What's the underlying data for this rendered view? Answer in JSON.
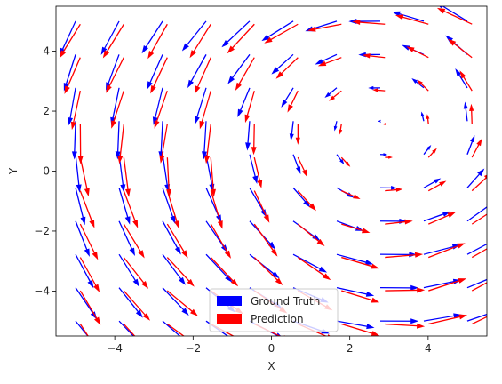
{
  "chart_data": {
    "type": "quiver",
    "title": "",
    "xlabel": "X",
    "ylabel": "Y",
    "xlim": [
      -5.5,
      5.5
    ],
    "ylim": [
      -5.5,
      5.5
    ],
    "xticks": [
      -4,
      -2,
      0,
      2,
      4
    ],
    "yticks": [
      -4,
      -2,
      0,
      2,
      4
    ],
    "xtick_labels": [
      "−4",
      "−2",
      "0",
      "2",
      "4"
    ],
    "ytick_labels": [
      "−4",
      "−2",
      "0",
      "2",
      "4"
    ],
    "grid": false,
    "legend": {
      "placement": "lower center",
      "entries": [
        {
          "label": "Ground Truth",
          "color": "#0000ff"
        },
        {
          "label": "Prediction",
          "color": "#ff0000"
        }
      ]
    },
    "grid_x": [
      -5,
      -3.889,
      -2.778,
      -1.667,
      -0.556,
      0.556,
      1.667,
      2.778,
      3.889,
      5
    ],
    "grid_y": [
      -5,
      -3.889,
      -2.778,
      -1.667,
      -0.556,
      0.556,
      1.667,
      2.778,
      3.889,
      5
    ],
    "field_center": [
      2.8,
      1.4
    ],
    "series": [
      {
        "name": "Ground Truth",
        "color": "#0000ff"
      },
      {
        "name": "Prediction",
        "color": "#ff0000"
      }
    ]
  }
}
